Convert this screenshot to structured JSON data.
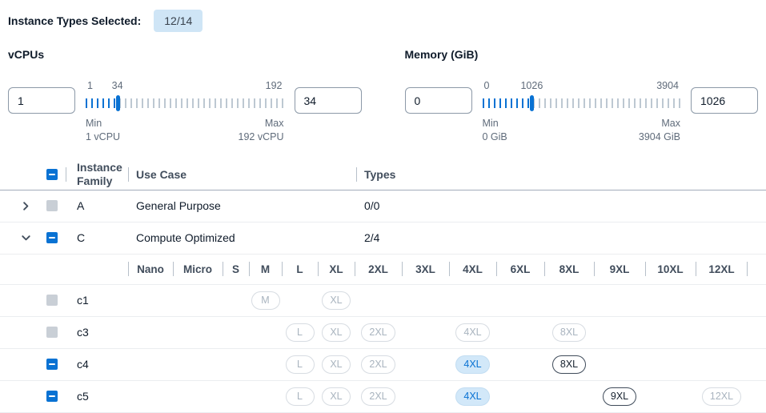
{
  "header": {
    "selected_label": "Instance Types Selected:",
    "selected_badge": "12/14"
  },
  "filters": {
    "vcpus": {
      "title": "vCPUs",
      "min_input": "1",
      "max_input": "34",
      "scale_min": "1",
      "scale_current": "34",
      "scale_max": "192",
      "min_label": "Min",
      "min_value": "1 vCPU",
      "max_label": "Max",
      "max_value": "192 vCPU",
      "fill_percent": 16
    },
    "memory": {
      "title": "Memory (GiB)",
      "min_input": "0",
      "max_input": "1026",
      "scale_min": "0",
      "scale_current": "1026",
      "scale_max": "3904",
      "min_label": "Min",
      "min_value": "0 GiB",
      "max_label": "Max",
      "max_value": "3904 GiB",
      "fill_percent": 25
    }
  },
  "table": {
    "columns": {
      "family": "Instance Family",
      "use_case": "Use Case",
      "types": "Types"
    },
    "size_columns": [
      "Nano",
      "Micro",
      "S",
      "M",
      "L",
      "XL",
      "2XL",
      "3XL",
      "4XL",
      "6XL",
      "8XL",
      "9XL",
      "10XL",
      "12XL"
    ],
    "family_rows": [
      {
        "family": "A",
        "use_case": "General Purpose",
        "types": "0/0",
        "expanded": false,
        "checkbox": "disabled",
        "children": []
      },
      {
        "family": "C",
        "use_case": "Compute Optimized",
        "types": "2/4",
        "expanded": true,
        "checkbox": "indeterminate",
        "children": [
          {
            "name": "c1",
            "checkbox": "disabled",
            "badges": [
              {
                "size": "M",
                "state": "disabled"
              },
              {
                "size": "XL",
                "state": "disabled"
              }
            ]
          },
          {
            "name": "c3",
            "checkbox": "disabled",
            "badges": [
              {
                "size": "L",
                "state": "disabled"
              },
              {
                "size": "XL",
                "state": "disabled"
              },
              {
                "size": "2XL",
                "state": "disabled"
              },
              {
                "size": "4XL",
                "state": "disabled"
              },
              {
                "size": "8XL",
                "state": "disabled"
              }
            ]
          },
          {
            "name": "c4",
            "checkbox": "indeterminate",
            "badges": [
              {
                "size": "L",
                "state": "disabled"
              },
              {
                "size": "XL",
                "state": "disabled"
              },
              {
                "size": "2XL",
                "state": "disabled"
              },
              {
                "size": "4XL",
                "state": "selected"
              },
              {
                "size": "8XL",
                "state": "available"
              }
            ]
          },
          {
            "name": "c5",
            "checkbox": "indeterminate",
            "badges": [
              {
                "size": "L",
                "state": "disabled"
              },
              {
                "size": "XL",
                "state": "disabled"
              },
              {
                "size": "2XL",
                "state": "disabled"
              },
              {
                "size": "4XL",
                "state": "selected"
              },
              {
                "size": "9XL",
                "state": "available"
              },
              {
                "size": "12XL",
                "state": "disabled"
              }
            ]
          }
        ]
      }
    ]
  },
  "colors": {
    "accent_blue": "#0972d3",
    "selected_badge_bg": "#d2e8f9",
    "disabled_gray": "#c9cfd6",
    "count_badge_bg": "#cfe5f6"
  }
}
